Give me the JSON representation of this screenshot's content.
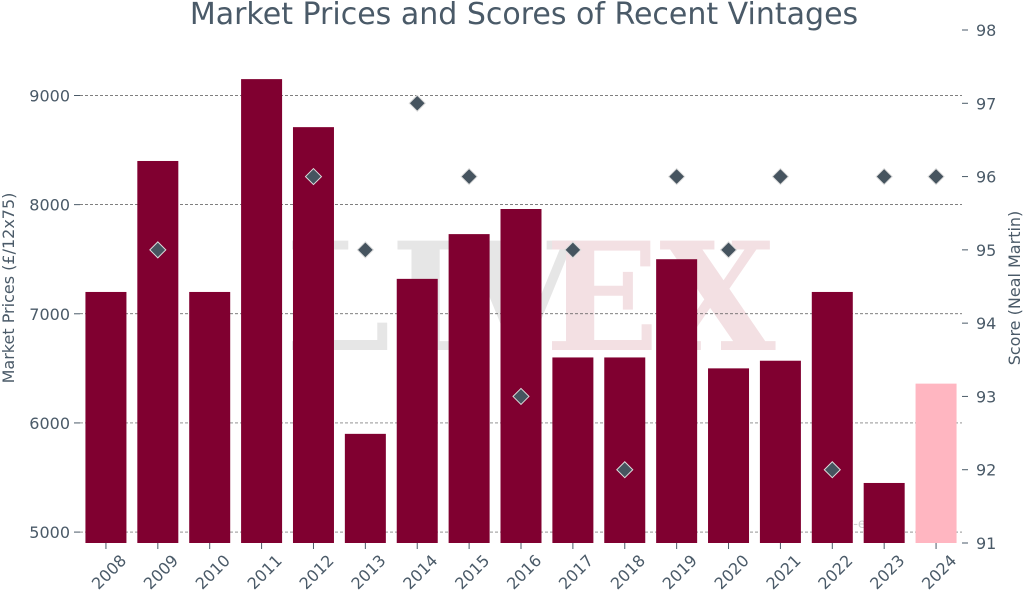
{
  "chart_data": {
    "type": "bar",
    "title": "Market Prices and Scores of Recent Vintages",
    "categories": [
      "2008",
      "2009",
      "2010",
      "2011",
      "2012",
      "2013",
      "2014",
      "2015",
      "2016",
      "2017",
      "2018",
      "2019",
      "2020",
      "2021",
      "2022",
      "2023",
      "2024"
    ],
    "series": [
      {
        "name": "Market Prices (£/12x75)",
        "type": "bar",
        "axis": "left",
        "values": [
          7200,
          8400,
          7200,
          9150,
          8710,
          5900,
          7320,
          7730,
          7960,
          6600,
          6600,
          7500,
          6500,
          6570,
          7200,
          5450,
          6360
        ],
        "colors": [
          "#800030",
          "#800030",
          "#800030",
          "#800030",
          "#800030",
          "#800030",
          "#800030",
          "#800030",
          "#800030",
          "#800030",
          "#800030",
          "#800030",
          "#800030",
          "#800030",
          "#800030",
          "#800030",
          "#ffb6c1"
        ]
      },
      {
        "name": "Score (Neal Martin)",
        "type": "scatter",
        "axis": "right",
        "marker": "diamond",
        "color": "#46545f",
        "values": [
          null,
          95,
          null,
          null,
          96,
          95,
          97,
          96,
          93,
          95,
          92,
          96,
          95,
          96,
          92,
          96,
          96
        ]
      }
    ],
    "ylabel": "Market Prices (£/12x75)",
    "y2label": "Score (Neal Martin)",
    "ylim": [
      4900,
      9600
    ],
    "yticks": [
      5000,
      6000,
      7000,
      8000,
      9000
    ],
    "y2lim": [
      91,
      98
    ],
    "y2ticks": [
      91,
      92,
      93,
      94,
      95,
      96,
      97,
      98
    ],
    "grid": true,
    "watermark": "LIV-EX",
    "colors": {
      "text": "#4a5a68",
      "grid": "#555555",
      "watermark_grey": "#e6e6e6",
      "watermark_pink": "#f3e0e3"
    }
  }
}
